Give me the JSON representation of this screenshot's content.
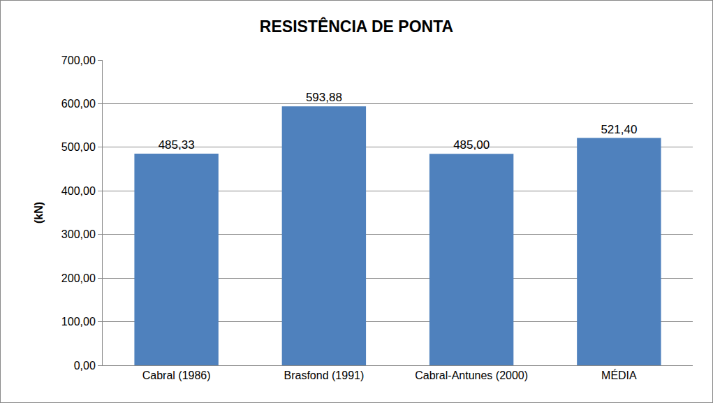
{
  "chart_data": {
    "type": "bar",
    "title": "RESISTÊNCIA DE PONTA",
    "y_label": "(kN)",
    "categories": [
      "Cabral (1986)",
      "Brasfond (1991)",
      "Cabral-Antunes (2000)",
      "MÉDIA"
    ],
    "values": [
      485.33,
      593.88,
      485.0,
      521.4
    ],
    "value_labels": [
      "485,33",
      "593,88",
      "485,00",
      "521,40"
    ],
    "data_labels": true,
    "color": "#4f81bd",
    "ylim": [
      0,
      700
    ],
    "yticks": [
      {
        "value": 0,
        "label": "0,00"
      },
      {
        "value": 100,
        "label": "100,00"
      },
      {
        "value": 200,
        "label": "200,00"
      },
      {
        "value": 300,
        "label": "300,00"
      },
      {
        "value": 400,
        "label": "400,00"
      },
      {
        "value": 500,
        "label": "500,00"
      },
      {
        "value": 600,
        "label": "600,00"
      },
      {
        "value": 700,
        "label": "700,00"
      }
    ],
    "grid": true
  }
}
